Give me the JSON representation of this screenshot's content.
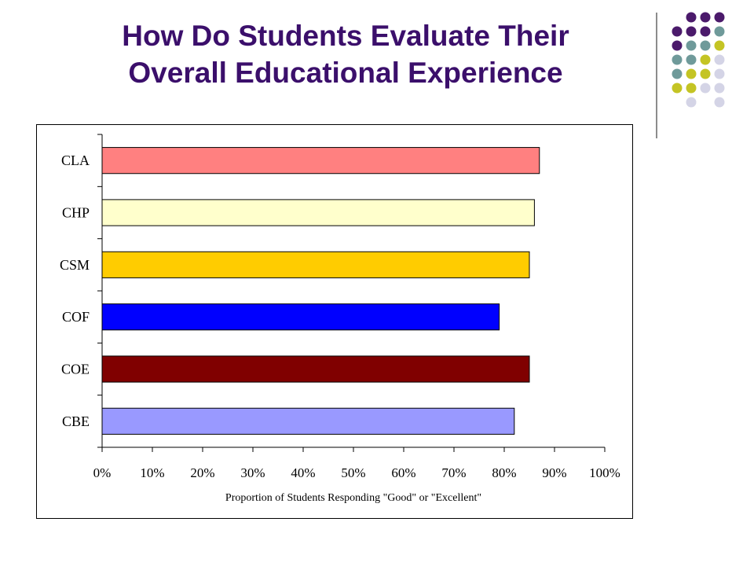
{
  "slide": {
    "title_line1": "How Do Students Evaluate Their",
    "title_line2": "Overall Educational Experience",
    "title_color": "#3b0f6b"
  },
  "decoration": {
    "dot_colors": {
      "purple": "#4b1a6b",
      "teal": "#6f9a9a",
      "olive": "#c4c424",
      "lavender": "#d4d4e6"
    },
    "dot_rows": [
      [
        "",
        "purple",
        "purple",
        "purple"
      ],
      [
        "purple",
        "purple",
        "purple",
        "teal"
      ],
      [
        "purple",
        "teal",
        "teal",
        "olive"
      ],
      [
        "teal",
        "teal",
        "olive",
        "lavender"
      ],
      [
        "teal",
        "olive",
        "olive",
        "lavender"
      ],
      [
        "olive",
        "olive",
        "lavender",
        "lavender"
      ],
      [
        "",
        "lavender",
        "",
        "lavender"
      ]
    ]
  },
  "chart_data": {
    "type": "bar",
    "orientation": "horizontal",
    "categories": [
      "CLA",
      "CHP",
      "CSM",
      "COF",
      "COE",
      "CBE"
    ],
    "values": [
      87,
      86,
      85,
      79,
      85,
      82
    ],
    "bar_colors": [
      "#ff8080",
      "#ffffcc",
      "#ffcc00",
      "#0000ff",
      "#800000",
      "#9999ff"
    ],
    "xlabel": "Proportion of Students Responding \"Good\" or \"Excellent\"",
    "ylabel": "",
    "xlim": [
      0,
      100
    ],
    "xticks": [
      "0%",
      "10%",
      "20%",
      "30%",
      "40%",
      "50%",
      "60%",
      "70%",
      "80%",
      "90%",
      "100%"
    ],
    "grid": false,
    "legend": "none"
  }
}
